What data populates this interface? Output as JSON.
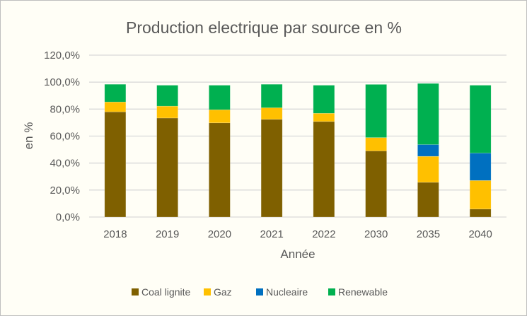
{
  "chart_data": {
    "type": "stacked-bar",
    "title": "Production electrique par source en %",
    "xlabel": "Année",
    "ylabel": "en %",
    "ylim": [
      0,
      120
    ],
    "yticks": [
      "0,0%",
      "20,0%",
      "40,0%",
      "60,0%",
      "80,0%",
      "100,0%",
      "120,0%"
    ],
    "grid": true,
    "legend_position": "bottom",
    "categories": [
      "2018",
      "2019",
      "2020",
      "2021",
      "2022",
      "2030",
      "2035",
      "2040"
    ],
    "series": [
      {
        "name": "Coal lignite",
        "color": "#7f6000",
        "values": [
          78.0,
          73.4,
          69.8,
          72.4,
          70.8,
          49.0,
          25.7,
          5.9
        ]
      },
      {
        "name": "Gaz",
        "color": "#ffc000",
        "values": [
          7.3,
          8.8,
          9.7,
          8.6,
          6.1,
          9.9,
          19.3,
          21.2
        ]
      },
      {
        "name": "Nucleaire",
        "color": "#0070c0",
        "values": [
          0,
          0,
          0,
          0,
          0,
          0,
          8.7,
          20.3
        ]
      },
      {
        "name": "Renewable",
        "color": "#00b050",
        "values": [
          13.1,
          15.5,
          18.2,
          17.4,
          20.8,
          39.4,
          45.3,
          50.3
        ]
      }
    ]
  }
}
